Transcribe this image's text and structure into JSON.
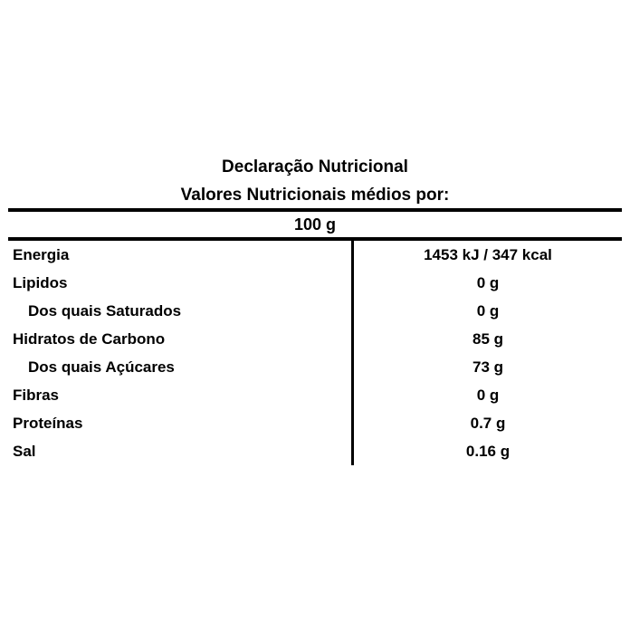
{
  "page": {
    "title": "Declaração Nutricional",
    "subtitle": "Valores Nutricionais médios por:",
    "serving": "100 g"
  },
  "table": {
    "rows": [
      {
        "label": "Energia",
        "value": "1453 kJ / 347 kcal",
        "indent": false
      },
      {
        "label": "Lipidos",
        "value": "0 g",
        "indent": false
      },
      {
        "label": "Dos quais Saturados",
        "value": "0 g",
        "indent": true
      },
      {
        "label": "Hidratos de Carbono",
        "value": "85 g",
        "indent": false
      },
      {
        "label": "Dos quais Açúcares",
        "value": "73 g",
        "indent": true
      },
      {
        "label": "Fibras",
        "value": "0 g",
        "indent": false
      },
      {
        "label": "Proteínas",
        "value": "0.7 g",
        "indent": false
      },
      {
        "label": "Sal",
        "value": "0.16 g",
        "indent": false
      }
    ]
  },
  "colors": {
    "text": "#000000",
    "background": "#ffffff",
    "border": "#000000"
  }
}
